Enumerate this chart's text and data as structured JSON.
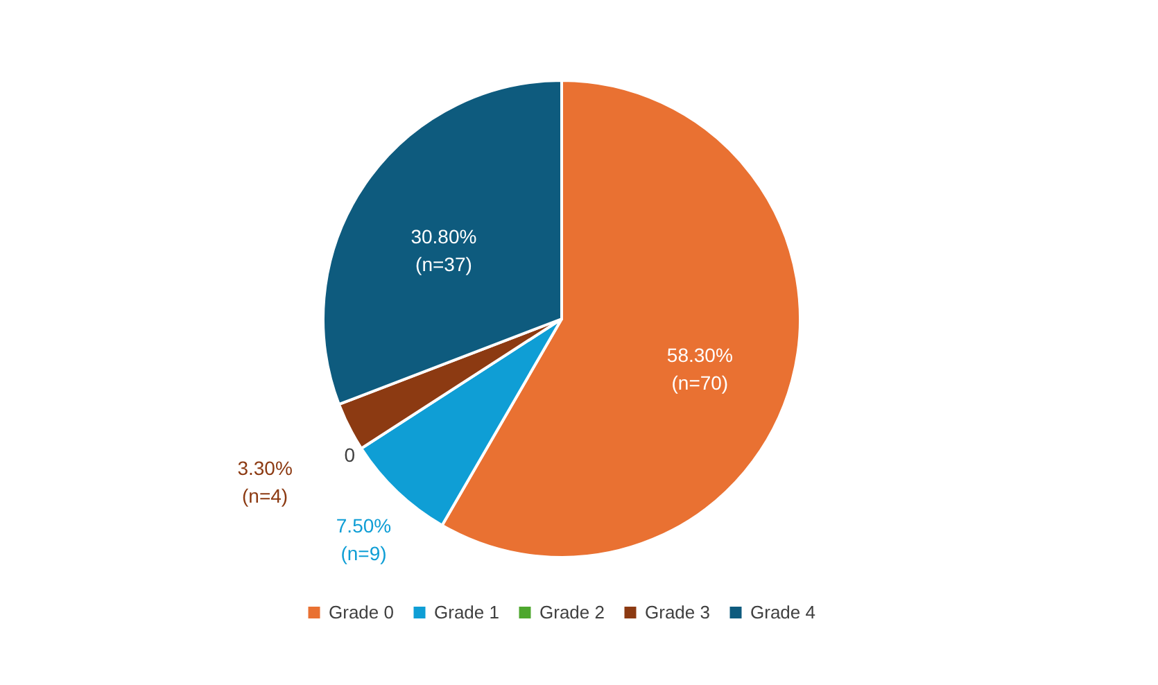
{
  "chart_data": {
    "type": "pie",
    "categories": [
      "Grade 0",
      "Grade 1",
      "Grade 2",
      "Grade 3",
      "Grade 4"
    ],
    "values": [
      58.3,
      7.5,
      0,
      3.3,
      30.8
    ],
    "colors": [
      "#e97132",
      "#0f9ed5",
      "#4ea72e",
      "#8c3a12",
      "#0e5b7e"
    ],
    "value_labels": [
      "58.30%\n(n=70)",
      "7.50%\n(n=9)",
      "0",
      "3.30%\n(n=4)",
      "30.80%\n(n=37)"
    ],
    "legend": "bottom"
  }
}
